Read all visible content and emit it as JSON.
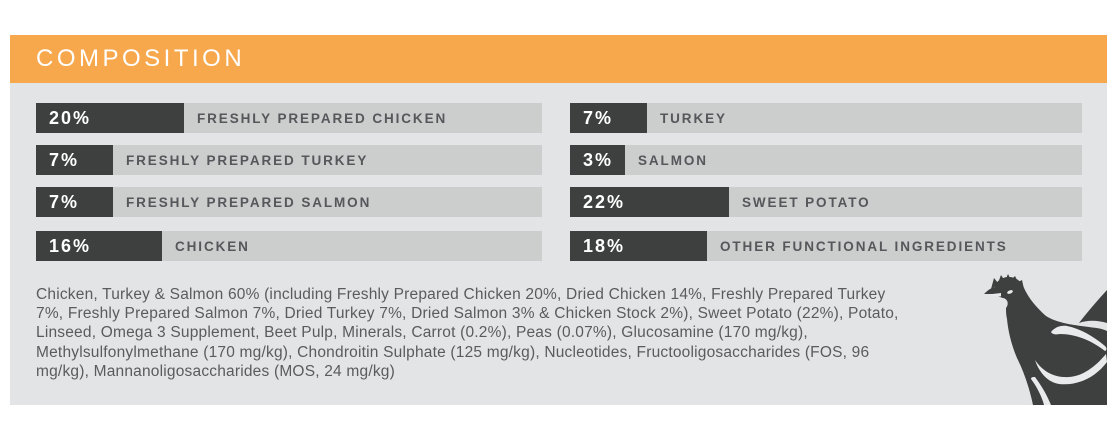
{
  "header": {
    "title": "COMPOSITION"
  },
  "colors": {
    "accent": "#f7a74c",
    "panel": "#e3e4e6",
    "track": "#cccdcd",
    "bar": "#3e3f3f",
    "label": "#55575a",
    "paragraph": "#5a5b5d",
    "percent_text": "#ffffff"
  },
  "composition": {
    "left": [
      {
        "percent": "20%",
        "value": 20,
        "label": "FRESHLY PREPARED CHICKEN"
      },
      {
        "percent": "7%",
        "value": 7,
        "label": "FRESHLY PREPARED TURKEY"
      },
      {
        "percent": "7%",
        "value": 7,
        "label": "FRESHLY PREPARED SALMON"
      },
      {
        "percent": "16%",
        "value": 16,
        "label": "CHICKEN"
      }
    ],
    "right": [
      {
        "percent": "7%",
        "value": 7,
        "label": "TURKEY"
      },
      {
        "percent": "3%",
        "value": 3,
        "label": "SALMON"
      },
      {
        "percent": "22%",
        "value": 22,
        "label": "SWEET POTATO"
      },
      {
        "percent": "18%",
        "value": 18,
        "label": "OTHER FUNCTIONAL INGREDIENTS"
      }
    ]
  },
  "footnote": "Chicken, Turkey & Salmon 60% (including Freshly Prepared Chicken 20%, Dried Chicken 14%, Freshly Prepared Turkey\n7%, Freshly Prepared Salmon 7%, Dried Turkey 7%, Dried Salmon 3% & Chicken Stock 2%), Sweet Potato (22%), Potato,\nLinseed, Omega 3 Supplement, Beet Pulp, Minerals, Carrot (0.2%), Peas (0.07%), Glucosamine (170 mg/kg),\nMethylsulfonylmethane (170 mg/kg), Chondroitin Sulphate (125 mg/kg), Nucleotides, Fructooligosaccharides (FOS, 96\nmg/kg), Mannanoligosaccharides (MOS, 24 mg/kg)",
  "icons": {
    "rooster": "rooster-silhouette"
  },
  "chart_data": {
    "type": "bar",
    "orientation": "horizontal",
    "title": "COMPOSITION",
    "unit": "percent",
    "legend_position": "none",
    "grid": false,
    "series": [
      {
        "name": "left-column",
        "categories": [
          "FRESHLY PREPARED CHICKEN",
          "FRESHLY PREPARED TURKEY",
          "FRESHLY PREPARED SALMON",
          "CHICKEN"
        ],
        "values": [
          20,
          7,
          7,
          16
        ]
      },
      {
        "name": "right-column",
        "categories": [
          "TURKEY",
          "SALMON",
          "SWEET POTATO",
          "OTHER FUNCTIONAL INGREDIENTS"
        ],
        "values": [
          7,
          3,
          22,
          18
        ]
      }
    ],
    "annotation": "Chicken, Turkey & Salmon 60% (including Freshly Prepared Chicken 20%, Dried Chicken 14%, Freshly Prepared Turkey 7%, Freshly Prepared Salmon 7%, Dried Turkey 7%, Dried Salmon 3% & Chicken Stock 2%), Sweet Potato (22%), Potato, Linseed, Omega 3 Supplement, Beet Pulp, Minerals, Carrot (0.2%), Peas (0.07%), Glucosamine (170 mg/kg), Methylsulfonylmethane (170 mg/kg), Chondroitin Sulphate (125 mg/kg), Nucleotides, Fructooligosaccharides (FOS, 96 mg/kg), Mannanoligosaccharides (MOS, 24 mg/kg)"
  }
}
